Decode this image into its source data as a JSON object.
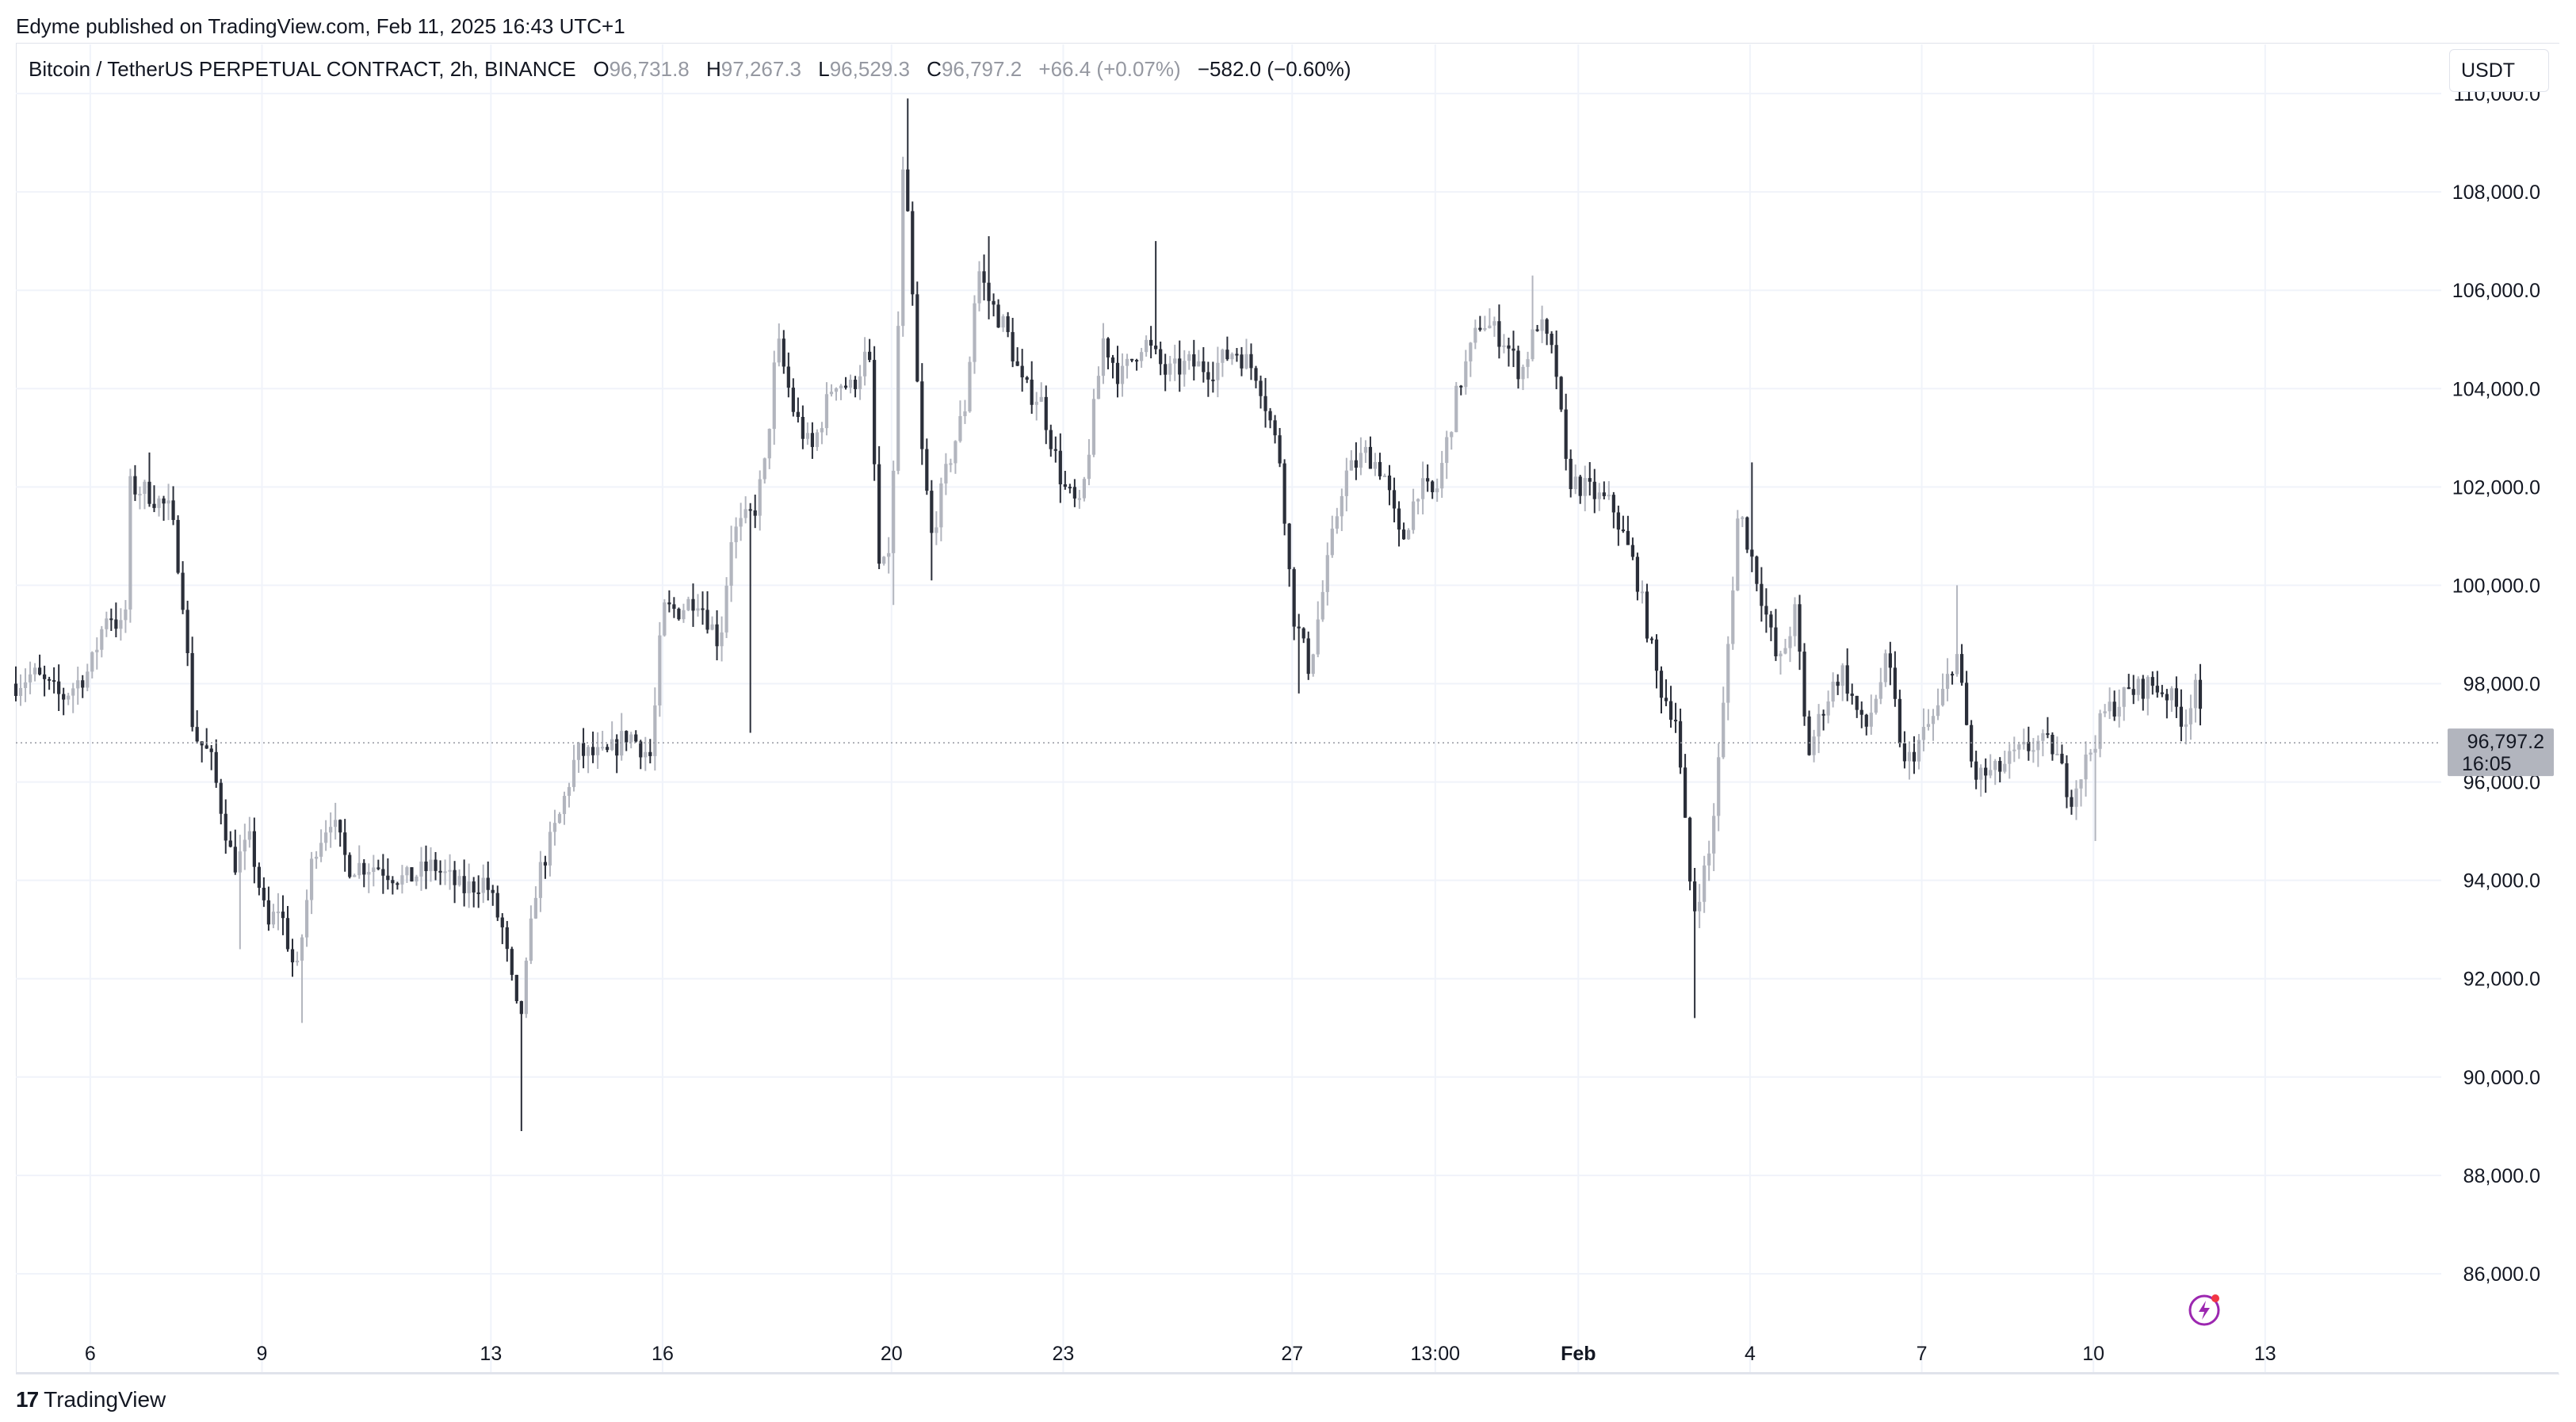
{
  "publisher_line": "Edyme published on TradingView.com, Feb 11, 2025 16:43 UTC+1",
  "legend": {
    "symbol": "Bitcoin / TetherUS PERPETUAL CONTRACT, 2h, BINANCE",
    "open_label": "O",
    "open": "96,731.8",
    "high_label": "H",
    "high": "97,267.3",
    "low_label": "L",
    "low": "96,529.3",
    "close_label": "C",
    "close": "96,797.2",
    "change": "+66.4 (+0.07%)",
    "day_change": "−582.0 (−0.60%)"
  },
  "currency": "USDT",
  "brand": {
    "logo_text": "17",
    "name": "TradingView"
  },
  "colors": {
    "up": "#b2b5be",
    "down": "#2a2e39",
    "grid": "#f0f3fa",
    "price_tag": "#b2b5be"
  },
  "chart_data": {
    "type": "candlestick",
    "title": "Bitcoin / TetherUS PERPETUAL CONTRACT, 2h, BINANCE",
    "ylim": [
      84500,
      111000
    ],
    "y_ticks": [
      86000,
      88000,
      90000,
      92000,
      94000,
      96000,
      98000,
      100000,
      102000,
      104000,
      106000,
      108000,
      110000
    ],
    "y_tick_labels": [
      "86,000.0",
      "88,000.0",
      "90,000.0",
      "92,000.0",
      "94,000.0",
      "96,000.0",
      "98,000.0",
      "100,000.0",
      "102,000.0",
      "104,000.0",
      "106,000.0",
      "108,000.0",
      "110,000.0"
    ],
    "x_tick_labels": [
      {
        "label": "6",
        "day": 6
      },
      {
        "label": "9",
        "day": 9
      },
      {
        "label": "13",
        "day": 13
      },
      {
        "label": "16",
        "day": 16
      },
      {
        "label": "20",
        "day": 20
      },
      {
        "label": "23",
        "day": 23
      },
      {
        "label": "27",
        "day": 27
      },
      {
        "label": "13:00",
        "day": 29.5
      },
      {
        "label": "Feb",
        "day": 32,
        "bold": true
      },
      {
        "label": "4",
        "day": 35
      },
      {
        "label": "7",
        "day": 38
      },
      {
        "label": "10",
        "day": 41
      },
      {
        "label": "13",
        "day": 44
      }
    ],
    "x_range_days": [
      4.7,
      46.8
    ],
    "bars_per_day": 12,
    "last_price": 96797.2,
    "last_price_label": "96,797.2",
    "countdown": "16:05",
    "anchors": [
      [
        4.7,
        98000
      ],
      [
        5.0,
        98200
      ],
      [
        5.5,
        97700
      ],
      [
        6.0,
        98300
      ],
      [
        6.3,
        99500
      ],
      [
        6.6,
        99000
      ],
      [
        6.7,
        102000
      ],
      [
        7.0,
        101900
      ],
      [
        7.4,
        101500
      ],
      [
        7.6,
        100000
      ],
      [
        7.8,
        97000
      ],
      [
        8.1,
        96500
      ],
      [
        8.5,
        94300
      ],
      [
        8.8,
        94800
      ],
      [
        9.1,
        93000
      ],
      [
        9.3,
        93500
      ],
      [
        9.6,
        92000
      ],
      [
        9.9,
        94600
      ],
      [
        10.2,
        95300
      ],
      [
        10.5,
        94300
      ],
      [
        11.0,
        94300
      ],
      [
        11.5,
        94000
      ],
      [
        12.0,
        94300
      ],
      [
        12.5,
        93800
      ],
      [
        12.9,
        94000
      ],
      [
        13.2,
        93000
      ],
      [
        13.5,
        91000
      ],
      [
        13.8,
        94000
      ],
      [
        14.2,
        95300
      ],
      [
        14.5,
        96600
      ],
      [
        15.0,
        96500
      ],
      [
        15.4,
        97000
      ],
      [
        15.8,
        96500
      ],
      [
        16.0,
        99500
      ],
      [
        16.3,
        99500
      ],
      [
        16.6,
        99800
      ],
      [
        17.0,
        98800
      ],
      [
        17.2,
        101000
      ],
      [
        17.6,
        101500
      ],
      [
        17.8,
        102500
      ],
      [
        18.0,
        105000
      ],
      [
        18.3,
        103500
      ],
      [
        18.6,
        102700
      ],
      [
        19.0,
        104200
      ],
      [
        19.3,
        104000
      ],
      [
        19.6,
        104800
      ],
      [
        19.8,
        100000
      ],
      [
        20.0,
        101000
      ],
      [
        20.2,
        108300
      ],
      [
        20.3,
        107200
      ],
      [
        20.5,
        103000
      ],
      [
        20.7,
        101000
      ],
      [
        21.0,
        102500
      ],
      [
        21.3,
        103700
      ],
      [
        21.5,
        106500
      ],
      [
        21.7,
        105800
      ],
      [
        22.0,
        105200
      ],
      [
        22.3,
        104000
      ],
      [
        22.6,
        103800
      ],
      [
        23.0,
        102000
      ],
      [
        23.3,
        101500
      ],
      [
        23.7,
        105000
      ],
      [
        24.0,
        104200
      ],
      [
        24.4,
        105000
      ],
      [
        24.8,
        104300
      ],
      [
        25.2,
        104500
      ],
      [
        25.6,
        104400
      ],
      [
        26.0,
        104800
      ],
      [
        26.4,
        104300
      ],
      [
        26.8,
        102500
      ],
      [
        27.0,
        99500
      ],
      [
        27.3,
        98300
      ],
      [
        27.6,
        100300
      ],
      [
        27.9,
        102200
      ],
      [
        28.3,
        102700
      ],
      [
        28.6,
        102300
      ],
      [
        28.9,
        100800
      ],
      [
        29.2,
        102000
      ],
      [
        29.5,
        101800
      ],
      [
        29.9,
        104000
      ],
      [
        30.3,
        105400
      ],
      [
        30.7,
        105000
      ],
      [
        31.0,
        104300
      ],
      [
        31.3,
        105400
      ],
      [
        31.6,
        104500
      ],
      [
        31.8,
        102200
      ],
      [
        32.2,
        101900
      ],
      [
        32.6,
        101600
      ],
      [
        33.0,
        100300
      ],
      [
        33.4,
        98000
      ],
      [
        33.7,
        97300
      ],
      [
        34.0,
        93300
      ],
      [
        34.3,
        94600
      ],
      [
        34.5,
        97000
      ],
      [
        34.8,
        101600
      ],
      [
        35.2,
        99800
      ],
      [
        35.5,
        98300
      ],
      [
        35.8,
        99500
      ],
      [
        36.0,
        96500
      ],
      [
        36.3,
        97600
      ],
      [
        36.6,
        98300
      ],
      [
        37.0,
        97000
      ],
      [
        37.4,
        98500
      ],
      [
        37.7,
        96300
      ],
      [
        38.0,
        96900
      ],
      [
        38.3,
        97500
      ],
      [
        38.6,
        98700
      ],
      [
        38.9,
        96100
      ],
      [
        39.3,
        96200
      ],
      [
        39.6,
        96500
      ],
      [
        40.0,
        96800
      ],
      [
        40.3,
        96700
      ],
      [
        40.6,
        95700
      ],
      [
        40.9,
        96500
      ],
      [
        41.2,
        97400
      ],
      [
        41.6,
        97800
      ],
      [
        42.0,
        98000
      ],
      [
        42.3,
        97800
      ],
      [
        42.6,
        97200
      ],
      [
        42.8,
        98200
      ],
      [
        42.9,
        96800
      ]
    ],
    "spikes": [
      {
        "day": 20.3,
        "high": 109900
      },
      {
        "day": 20.0,
        "low": 99600
      },
      {
        "day": 20.7,
        "low": 100100
      },
      {
        "day": 27.1,
        "low": 97800
      },
      {
        "day": 34.0,
        "low": 91200
      },
      {
        "day": 13.5,
        "low": 88900
      },
      {
        "day": 9.7,
        "low": 91100
      },
      {
        "day": 8.6,
        "low": 92600
      },
      {
        "day": 35.0,
        "high": 102500
      },
      {
        "day": 38.6,
        "high": 100000
      },
      {
        "day": 41.0,
        "low": 94800
      },
      {
        "day": 24.6,
        "high": 107000
      },
      {
        "day": 21.7,
        "high": 107100
      },
      {
        "day": 31.2,
        "high": 106300
      },
      {
        "day": 17.5,
        "low": 97000
      },
      {
        "day": 7.0,
        "high": 102700
      }
    ]
  }
}
